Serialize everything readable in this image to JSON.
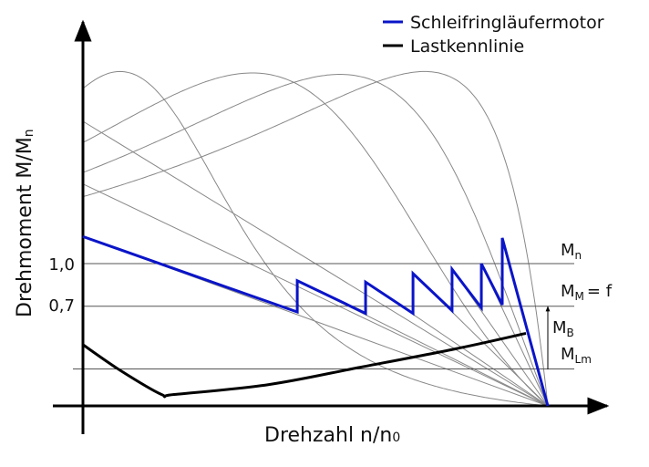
{
  "chart_data": {
    "type": "line",
    "xlabel": "Drehzahl n/n",
    "xlabel_sub": "0",
    "ylabel": "Drehmoment M/M",
    "ylabel_sub": "n",
    "xlim": [
      0,
      1
    ],
    "ylim": [
      0,
      2.5
    ],
    "y_ticks": [
      {
        "value": 1.0,
        "label": "1,0"
      },
      {
        "value": 0.7,
        "label": "0,7"
      }
    ],
    "legend": {
      "placement": "top-right",
      "items": [
        {
          "name": "Schleifringläufermotor",
          "color": "#0a14c8"
        },
        {
          "name": "Lastkennlinie",
          "color": "#000000"
        }
      ]
    },
    "reference_lines": [
      {
        "value": 1.0,
        "label": "M",
        "sub": "n"
      },
      {
        "value": 0.7,
        "label": "M",
        "sub": "M",
        "suffix": "= f"
      },
      {
        "value": 0.26,
        "label": "M",
        "sub": "Lm"
      }
    ],
    "arrow_label": {
      "label": "M",
      "sub": "B"
    },
    "series": [
      {
        "name": "Schleifringläufermotor",
        "color": "#0a14c8",
        "x": [
          0,
          0.461,
          0.461,
          0.608,
          0.608,
          0.71,
          0.71,
          0.794,
          0.794,
          0.857,
          0.857,
          0.902,
          0.902,
          1.0
        ],
        "y": [
          1.19,
          0.66,
          0.88,
          0.65,
          0.87,
          0.65,
          0.93,
          0.67,
          0.96,
          0.69,
          1.0,
          0.71,
          1.18,
          0
        ]
      },
      {
        "name": "Lastkennlinie",
        "color": "#000000",
        "x": [
          0,
          0.08,
          0.169,
          0.196,
          0.4,
          0.594,
          0.8,
          0.953
        ],
        "y": [
          0.43,
          0.25,
          0.08,
          0.08,
          0.15,
          0.27,
          0.4,
          0.51
        ]
      }
    ],
    "gray_characteristic_curves": [
      {
        "peak_n": 0.08,
        "peak_m": 2.35,
        "start_m": 2.23
      },
      {
        "peak_n": 0.364,
        "peak_m": 2.34,
        "start_m": 1.85
      },
      {
        "peak_n": 0.553,
        "peak_m": 2.33,
        "start_m": 1.64
      },
      {
        "peak_n": 0.735,
        "peak_m": 2.35,
        "start_m": 1.47
      }
    ],
    "gray_rays_start_m": [
      2.0,
      1.56
    ],
    "gray_color": "#888888"
  }
}
